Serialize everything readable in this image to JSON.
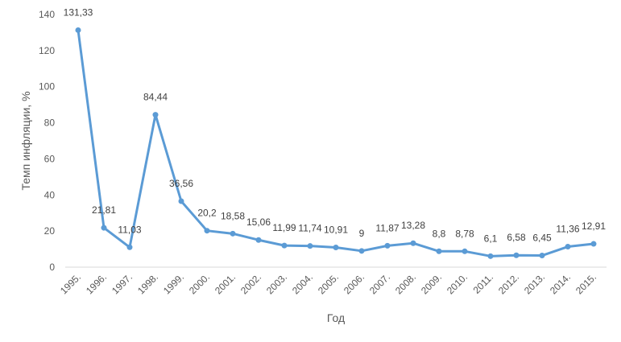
{
  "chart_data": {
    "type": "line",
    "xlabel": "Год",
    "ylabel": "Темп инфляции, %",
    "ylim": [
      0,
      140
    ],
    "yticks": [
      0,
      20,
      40,
      60,
      80,
      100,
      120,
      140
    ],
    "grid": false,
    "legend": "none",
    "line_color": "#5B9BD5",
    "categories": [
      "1995.",
      "1996.",
      "1997.",
      "1998.",
      "1999.",
      "2000.",
      "2001.",
      "2002.",
      "2003.",
      "2004.",
      "2005.",
      "2006.",
      "2007.",
      "2008.",
      "2009.",
      "2010.",
      "2011.",
      "2012.",
      "2013.",
      "2014.",
      "2015."
    ],
    "series": [
      {
        "values": [
          131.33,
          21.81,
          11.03,
          84.44,
          36.56,
          20.2,
          18.58,
          15.06,
          11.99,
          11.74,
          10.91,
          9,
          11.87,
          13.28,
          8.8,
          8.78,
          6.1,
          6.58,
          6.45,
          11.36,
          12.91
        ],
        "labels": [
          "131,33",
          "21,81",
          "11,03",
          "84,44",
          "36,56",
          "20,2",
          "18,58",
          "15,06",
          "11,99",
          "11,74",
          "10,91",
          "9",
          "11,87",
          "13,28",
          "8,8",
          "8,78",
          "6,1",
          "6,58",
          "6,45",
          "11,36",
          "12,91"
        ]
      }
    ]
  }
}
